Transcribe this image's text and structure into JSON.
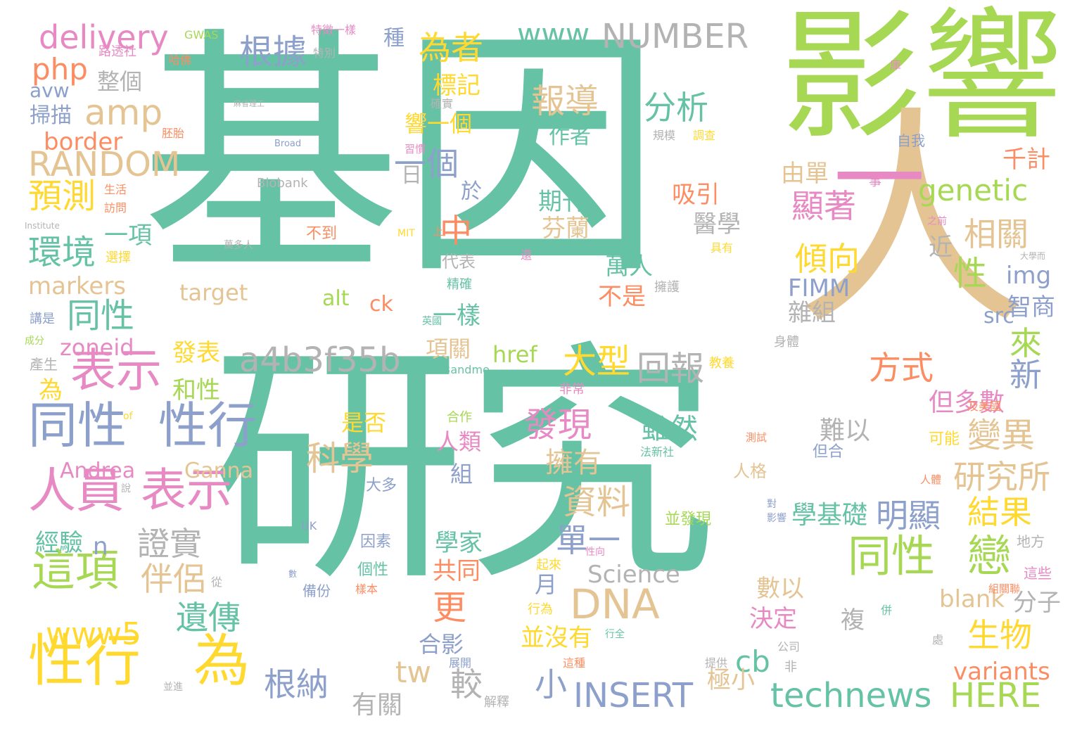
{
  "cloud": {
    "background": "#ffffff",
    "palette": {
      "teal": "#66c2a5",
      "green": "#a6d854",
      "tan": "#e5c494",
      "pink": "#e78ac3",
      "blue": "#8da0cb",
      "orange": "#fc8d62",
      "yellow": "#ffd92f",
      "gray": "#b3b3b3"
    },
    "words": [
      {
        "text": "基因",
        "color": "#66c2a5"
      },
      {
        "text": "研究",
        "color": "#66c2a5"
      },
      {
        "text": "影響",
        "color": "#a6d854"
      },
      {
        "text": "人",
        "color": "#e5c494"
      },
      {
        "text": "一",
        "color": "#e78ac3"
      },
      {
        "text": "性行",
        "color": "#ffd92f"
      },
      {
        "text": "為",
        "color": "#ffd92f"
      },
      {
        "text": "同性",
        "color": "#8da0cb"
      },
      {
        "text": "性行",
        "color": "#8da0cb"
      },
      {
        "text": "人員",
        "color": "#e78ac3"
      },
      {
        "text": "表示",
        "color": "#e78ac3"
      },
      {
        "text": "表示",
        "color": "#e78ac3"
      },
      {
        "text": "這項",
        "color": "#a6d854"
      },
      {
        "text": "同性",
        "color": "#a6d854"
      },
      {
        "text": "戀",
        "color": "#a6d854"
      },
      {
        "text": "DNA",
        "color": "#e5c494"
      },
      {
        "text": "NUMBER",
        "color": "#b3b3b3"
      },
      {
        "text": "www",
        "color": "#66c2a5"
      },
      {
        "text": "delivery",
        "color": "#e78ac3"
      },
      {
        "text": "php",
        "color": "#fc8d62"
      },
      {
        "text": "amp",
        "color": "#e5c494"
      },
      {
        "text": "RANDOM",
        "color": "#e5c494"
      },
      {
        "text": "a4b3f35b",
        "color": "#b3b3b3"
      },
      {
        "text": "www5",
        "color": "#ffd92f"
      },
      {
        "text": "INSERT",
        "color": "#8da0cb"
      },
      {
        "text": "technews",
        "color": "#66c2a5"
      },
      {
        "text": "HERE",
        "color": "#a6d854"
      },
      {
        "text": "genetic",
        "color": "#a6d854"
      },
      {
        "text": "根據",
        "color": "#8da0cb"
      },
      {
        "text": "為者",
        "color": "#ffd92f"
      },
      {
        "text": "報導",
        "color": "#e5c494"
      },
      {
        "text": "分析",
        "color": "#66c2a5"
      },
      {
        "text": "一個",
        "color": "#8da0cb"
      },
      {
        "text": "預測",
        "color": "#ffd92f"
      },
      {
        "text": "環境",
        "color": "#66c2a5"
      },
      {
        "text": "同性",
        "color": "#66c2a5"
      },
      {
        "text": "markers",
        "color": "#e5c494"
      },
      {
        "text": "zoneid",
        "color": "#e78ac3"
      },
      {
        "text": "border",
        "color": "#fc8d62"
      },
      {
        "text": "avw",
        "color": "#8da0cb"
      },
      {
        "text": "掃描",
        "color": "#8da0cb"
      },
      {
        "text": "整個",
        "color": "#b3b3b3"
      },
      {
        "text": "一項",
        "color": "#66c2a5"
      },
      {
        "text": "中",
        "color": "#fc8d62"
      },
      {
        "text": "期刊",
        "color": "#66c2a5"
      },
      {
        "text": "吸引",
        "color": "#fc8d62"
      },
      {
        "text": "醫學",
        "color": "#b3b3b3"
      },
      {
        "text": "芬蘭",
        "color": "#e5c494"
      },
      {
        "text": "萬人",
        "color": "#66c2a5"
      },
      {
        "text": "不是",
        "color": "#fc8d62"
      },
      {
        "text": "顯著",
        "color": "#e78ac3"
      },
      {
        "text": "傾向",
        "color": "#ffd92f"
      },
      {
        "text": "相關",
        "color": "#e5c494"
      },
      {
        "text": "性",
        "color": "#a6d854"
      },
      {
        "text": "由單",
        "color": "#e5c494"
      },
      {
        "text": "千計",
        "color": "#fc8d62"
      },
      {
        "text": "img",
        "color": "#8da0cb"
      },
      {
        "text": "智商",
        "color": "#8da0cb"
      },
      {
        "text": "src",
        "color": "#8da0cb"
      },
      {
        "text": "FIMM",
        "color": "#8da0cb"
      },
      {
        "text": "雜組",
        "color": "#b3b3b3"
      },
      {
        "text": "近",
        "color": "#b3b3b3"
      },
      {
        "text": "方式",
        "color": "#fc8d62"
      },
      {
        "text": "來",
        "color": "#a6d854"
      },
      {
        "text": "新",
        "color": "#8da0cb"
      },
      {
        "text": "大型",
        "color": "#ffd92f"
      },
      {
        "text": "回報",
        "color": "#b3b3b3"
      },
      {
        "text": "發現",
        "color": "#e78ac3"
      },
      {
        "text": "變異",
        "color": "#e5c494"
      },
      {
        "text": "研究所",
        "color": "#e5c494"
      },
      {
        "text": "結果",
        "color": "#ffd92f"
      },
      {
        "text": "明顯",
        "color": "#8da0cb"
      },
      {
        "text": "學基礎",
        "color": "#66c2a5"
      },
      {
        "text": "但多數",
        "color": "#e78ac3"
      },
      {
        "text": "科學",
        "color": "#e5c494"
      },
      {
        "text": "資料",
        "color": "#e5c494"
      },
      {
        "text": "單一",
        "color": "#8da0cb"
      },
      {
        "text": "雖然",
        "color": "#66c2a5"
      },
      {
        "text": "擁有",
        "color": "#e5c494"
      },
      {
        "text": "難以",
        "color": "#b3b3b3"
      },
      {
        "text": "證實",
        "color": "#b3b3b3"
      },
      {
        "text": "伴侶",
        "color": "#e5c494"
      },
      {
        "text": "遺傳",
        "color": "#66c2a5"
      },
      {
        "text": "根納",
        "color": "#8da0cb"
      },
      {
        "text": "更",
        "color": "#fc8d62"
      },
      {
        "text": "Science",
        "color": "#b3b3b3"
      },
      {
        "text": "數以",
        "color": "#e5c494"
      },
      {
        "text": "決定",
        "color": "#e78ac3"
      },
      {
        "text": "生物",
        "color": "#ffd92f"
      },
      {
        "text": "blank",
        "color": "#e5c494"
      },
      {
        "text": "分子",
        "color": "#b3b3b3"
      },
      {
        "text": "variants",
        "color": "#fc8d62"
      },
      {
        "text": "cb",
        "color": "#66c2a5"
      },
      {
        "text": "小",
        "color": "#8da0cb"
      },
      {
        "text": "tw",
        "color": "#e5c494"
      },
      {
        "text": "較",
        "color": "#b3b3b3"
      },
      {
        "text": "有關",
        "color": "#b3b3b3"
      },
      {
        "text": "合影",
        "color": "#8da0cb"
      },
      {
        "text": "並沒有",
        "color": "#ffd92f"
      },
      {
        "text": "極小",
        "color": "#e5c494"
      },
      {
        "text": "複",
        "color": "#b3b3b3"
      },
      {
        "text": "月",
        "color": "#8da0cb"
      },
      {
        "text": "共同",
        "color": "#fc8d62"
      },
      {
        "text": "學家",
        "color": "#66c2a5"
      },
      {
        "text": "經驗",
        "color": "#66c2a5"
      },
      {
        "text": "n",
        "color": "#8da0cb"
      },
      {
        "text": "Andrea",
        "color": "#e78ac3"
      },
      {
        "text": "Ganna",
        "color": "#e5c494"
      },
      {
        "text": "和性",
        "color": "#a6d854"
      },
      {
        "text": "發表",
        "color": "#ffd92f"
      },
      {
        "text": "為",
        "color": "#ffd92f"
      },
      {
        "text": "target",
        "color": "#e5c494"
      },
      {
        "text": "alt",
        "color": "#a6d854"
      },
      {
        "text": "ck",
        "color": "#fc8d62"
      },
      {
        "text": "href",
        "color": "#a6d854"
      },
      {
        "text": "一樣",
        "color": "#66c2a5"
      },
      {
        "text": "項關",
        "color": "#e5c494"
      },
      {
        "text": "是否",
        "color": "#ffd92f"
      },
      {
        "text": "人類",
        "color": "#e78ac3"
      },
      {
        "text": "組",
        "color": "#8da0cb"
      },
      {
        "text": "大多",
        "color": "#8da0cb"
      },
      {
        "text": "因素",
        "color": "#8da0cb"
      },
      {
        "text": "個性",
        "color": "#66c2a5"
      },
      {
        "text": "人格",
        "color": "#e5c494"
      },
      {
        "text": "並發現",
        "color": "#a6d854"
      },
      {
        "text": "但合",
        "color": "#8da0cb"
      },
      {
        "text": "可能",
        "color": "#ffd92f"
      },
      {
        "text": "地方",
        "color": "#b3b3b3"
      },
      {
        "text": "這些",
        "color": "#e78ac3"
      },
      {
        "text": "標記",
        "color": "#ffd92f"
      },
      {
        "text": "響一個",
        "color": "#ffd92f"
      },
      {
        "text": "作者",
        "color": "#66c2a5"
      },
      {
        "text": "日",
        "color": "#b3b3b3"
      },
      {
        "text": "於",
        "color": "#8da0cb"
      },
      {
        "text": "種",
        "color": "#8da0cb"
      },
      {
        "text": "GWAS",
        "color": "#a6d854"
      },
      {
        "text": "特徵一樣",
        "color": "#e78ac3"
      },
      {
        "text": "路透社",
        "color": "#e78ac3"
      },
      {
        "text": "哈佛",
        "color": "#fc8d62"
      },
      {
        "text": "特別",
        "color": "#b3b3b3"
      },
      {
        "text": "麻省理工",
        "color": "#b3b3b3"
      },
      {
        "text": "胚胎",
        "color": "#fc8d62"
      },
      {
        "text": "Broad",
        "color": "#8da0cb"
      },
      {
        "text": "習慣",
        "color": "#e78ac3"
      },
      {
        "text": "確實",
        "color": "#b3b3b3"
      },
      {
        "text": "Biobank",
        "color": "#b3b3b3"
      },
      {
        "text": "生活",
        "color": "#fc8d62"
      },
      {
        "text": "訪問",
        "color": "#fc8d62"
      },
      {
        "text": "Institute",
        "color": "#b3b3b3"
      },
      {
        "text": "MIT",
        "color": "#ffd92f"
      },
      {
        "text": "上",
        "color": "#fc8d62"
      },
      {
        "text": "不到",
        "color": "#fc8d62"
      },
      {
        "text": "萬多人",
        "color": "#b3b3b3"
      },
      {
        "text": "選擇",
        "color": "#ffd92f"
      },
      {
        "text": "代表",
        "color": "#b3b3b3"
      },
      {
        "text": "精確",
        "color": "#66c2a5"
      },
      {
        "text": "英國",
        "color": "#66c2a5"
      },
      {
        "text": "講是",
        "color": "#8da0cb"
      },
      {
        "text": "成分",
        "color": "#a6d854"
      },
      {
        "text": "產生",
        "color": "#b3b3b3"
      },
      {
        "text": "23andme",
        "color": "#66c2a5"
      },
      {
        "text": "of",
        "color": "#ffd92f"
      },
      {
        "text": "說",
        "color": "#b3b3b3"
      },
      {
        "text": "UK",
        "color": "#8da0cb"
      },
      {
        "text": "數",
        "color": "#8da0cb"
      },
      {
        "text": "備份",
        "color": "#8da0cb"
      },
      {
        "text": "從",
        "color": "#b3b3b3"
      },
      {
        "text": "樣本",
        "color": "#fc8d62"
      },
      {
        "text": "性向",
        "color": "#e78ac3"
      },
      {
        "text": "起來",
        "color": "#ffd92f"
      },
      {
        "text": "行為",
        "color": "#ffd92f"
      },
      {
        "text": "展開",
        "color": "#8da0cb"
      },
      {
        "text": "解釋",
        "color": "#b3b3b3"
      },
      {
        "text": "並進",
        "color": "#b3b3b3"
      },
      {
        "text": "非常",
        "color": "#e78ac3"
      },
      {
        "text": "合作",
        "color": "#a6d854"
      },
      {
        "text": "法新社",
        "color": "#66c2a5"
      },
      {
        "text": "測試",
        "color": "#fc8d62"
      },
      {
        "text": "對",
        "color": "#8da0cb"
      },
      {
        "text": "影響",
        "color": "#8da0cb"
      },
      {
        "text": "人體",
        "color": "#fc8d62"
      },
      {
        "text": "及美國",
        "color": "#fc8d62"
      },
      {
        "text": "組關聯",
        "color": "#fc8d62"
      },
      {
        "text": "併",
        "color": "#66c2a5"
      },
      {
        "text": "處",
        "color": "#b3b3b3"
      },
      {
        "text": "公司",
        "color": "#b3b3b3"
      },
      {
        "text": "提供",
        "color": "#b3b3b3"
      },
      {
        "text": "非",
        "color": "#b3b3b3"
      },
      {
        "text": "這種",
        "color": "#fc8d62"
      },
      {
        "text": "行全",
        "color": "#66c2a5"
      },
      {
        "text": "身體",
        "color": "#b3b3b3"
      },
      {
        "text": "教養",
        "color": "#ffd92f"
      },
      {
        "text": "擁護",
        "color": "#b3b3b3"
      },
      {
        "text": "具有",
        "color": "#ffd92f"
      },
      {
        "text": "之前",
        "color": "#e78ac3"
      },
      {
        "text": "大學而",
        "color": "#b3b3b3"
      },
      {
        "text": "事",
        "color": "#e78ac3"
      },
      {
        "text": "庫",
        "color": "#e78ac3"
      },
      {
        "text": "自我",
        "color": "#8da0cb"
      },
      {
        "text": "規模",
        "color": "#b3b3b3"
      },
      {
        "text": "調查",
        "color": "#ffd92f"
      },
      {
        "text": "還",
        "color": "#e78ac3"
      }
    ]
  }
}
